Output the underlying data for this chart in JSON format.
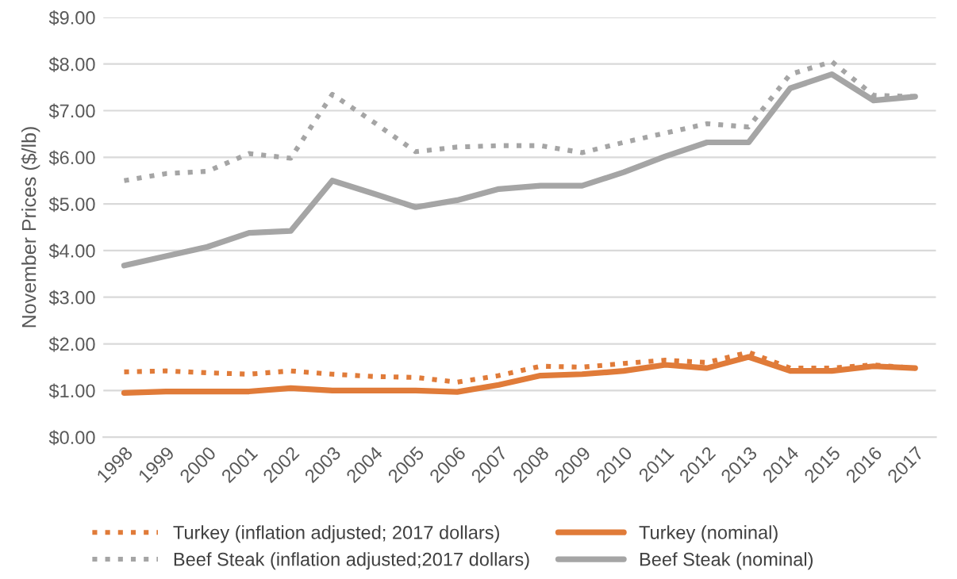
{
  "chart_data": {
    "type": "line",
    "ylabel": "November Prices ($/lb)",
    "categories": [
      "1998",
      "1999",
      "2000",
      "2001",
      "2002",
      "2003",
      "2004",
      "2005",
      "2006",
      "2007",
      "2008",
      "2009",
      "2010",
      "2011",
      "2012",
      "2013",
      "2014",
      "2015",
      "2016",
      "2017"
    ],
    "series": [
      {
        "name": "Turkey (inflation adjusted; 2017 dollars)",
        "color": "#e07b39",
        "line_style": "dotted",
        "values": [
          1.4,
          1.42,
          1.38,
          1.35,
          1.42,
          1.35,
          1.3,
          1.28,
          1.18,
          1.32,
          1.52,
          1.5,
          1.58,
          1.65,
          1.6,
          1.82,
          1.48,
          1.48,
          1.55,
          1.48
        ]
      },
      {
        "name": "Turkey (nominal)",
        "color": "#e07b39",
        "line_style": "solid",
        "values": [
          0.95,
          0.98,
          0.98,
          0.98,
          1.05,
          1.0,
          1.0,
          1.0,
          0.97,
          1.12,
          1.32,
          1.35,
          1.42,
          1.55,
          1.48,
          1.72,
          1.42,
          1.42,
          1.52,
          1.48
        ]
      },
      {
        "name": "Beef Steak (inflation adjusted;2017 dollars)",
        "color": "#a5a5a5",
        "line_style": "dotted",
        "values": [
          5.5,
          5.65,
          5.7,
          6.08,
          5.98,
          7.35,
          6.75,
          6.12,
          6.22,
          6.25,
          6.25,
          6.1,
          6.32,
          6.52,
          6.72,
          6.65,
          7.78,
          8.05,
          7.33,
          7.3
        ]
      },
      {
        "name": "Beef Steak (nominal)",
        "color": "#a5a5a5",
        "line_style": "solid",
        "values": [
          3.68,
          3.88,
          4.08,
          4.38,
          4.42,
          5.5,
          5.22,
          4.93,
          5.08,
          5.32,
          5.39,
          5.39,
          5.68,
          6.02,
          6.32,
          6.32,
          7.48,
          7.78,
          7.22,
          7.3
        ]
      }
    ],
    "ylim": [
      0,
      9
    ],
    "yticks": [
      {
        "value": 0,
        "label": "$0.00"
      },
      {
        "value": 1,
        "label": "$1.00"
      },
      {
        "value": 2,
        "label": "$2.00"
      },
      {
        "value": 3,
        "label": "$3.00"
      },
      {
        "value": 4,
        "label": "$4.00"
      },
      {
        "value": 5,
        "label": "$5.00"
      },
      {
        "value": 6,
        "label": "$6.00"
      },
      {
        "value": 7,
        "label": "$7.00"
      },
      {
        "value": 8,
        "label": "$8.00"
      },
      {
        "value": 9,
        "label": "$9.00"
      }
    ],
    "grid": "y",
    "legend": "bottom",
    "marker": "none"
  }
}
